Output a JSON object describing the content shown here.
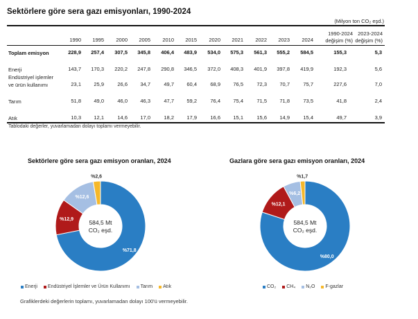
{
  "table": {
    "title": "Sektörlere göre sera gazı emisyonları, 1990-2024",
    "unit_note": "(Milyon ton CO₂ eşd.)",
    "columns": [
      "1990",
      "1995",
      "2000",
      "2005",
      "2010",
      "2015",
      "2020",
      "2021",
      "2022",
      "2023",
      "2024"
    ],
    "change_headers": [
      {
        "line1": "1990-2024",
        "line2": "değişim (%)"
      },
      {
        "line1": "2023-2024",
        "line2": "değişim (%)"
      }
    ],
    "rows": [
      {
        "label": "Toplam emisyon",
        "label2": "",
        "bold": true,
        "values": [
          "228,9",
          "257,4",
          "307,5",
          "345,8",
          "406,4",
          "483,9",
          "534,0",
          "575,3",
          "561,3",
          "555,2",
          "584,5"
        ],
        "change": [
          "155,3",
          "5,3"
        ]
      },
      {
        "label": "Enerji",
        "label2": "",
        "bold": false,
        "values": [
          "143,7",
          "170,3",
          "220,2",
          "247,8",
          "290,8",
          "346,5",
          "372,0",
          "408,3",
          "401,9",
          "397,8",
          "419,9"
        ],
        "change": [
          "192,3",
          "5,6"
        ]
      },
      {
        "label": "Endüstriyel işlemler",
        "label2": "ve ürün kullanımı",
        "bold": false,
        "values": [
          "23,1",
          "25,9",
          "26,6",
          "34,7",
          "49,7",
          "60,4",
          "68,9",
          "76,5",
          "72,3",
          "70,7",
          "75,7"
        ],
        "change": [
          "227,6",
          "7,0"
        ]
      },
      {
        "label": "Tarım",
        "label2": "",
        "bold": false,
        "values": [
          "51,8",
          "49,0",
          "46,0",
          "46,3",
          "47,7",
          "59,2",
          "76,4",
          "75,4",
          "71,5",
          "71,8",
          "73,5"
        ],
        "change": [
          "41,8",
          "2,4"
        ]
      },
      {
        "label": "Atık",
        "label2": "",
        "bold": false,
        "values": [
          "10,3",
          "12,1",
          "14,6",
          "17,0",
          "18,2",
          "17,9",
          "16,6",
          "15,1",
          "15,6",
          "14,9",
          "15,4"
        ],
        "change": [
          "49,7",
          "3,9"
        ]
      }
    ],
    "footnote": "Tablodaki değerler, yuvarlamadan dolayı toplamı vermeyebilir."
  },
  "chart_data": [
    {
      "type": "pie",
      "variant": "donut",
      "title": "Sektörlere göre sera gazı emisyon oranları, 2024",
      "center_label_line1": "584,5 Mt",
      "center_label_line2": "CO₂ eşd.",
      "categories": [
        "Enerji",
        "Endüstriyel İşlemler ve Ürün Kullanımı",
        "Tarım",
        "Atık"
      ],
      "values": [
        71.8,
        12.9,
        12.6,
        2.6
      ],
      "data_labels": [
        "%71,8",
        "%12,9",
        "%12,6",
        "%2,6"
      ],
      "colors": [
        "#2a7ec4",
        "#b01a1a",
        "#a5bfe3",
        "#f6b82a"
      ],
      "label_colors": [
        "#ffffff",
        "#ffffff",
        "#ffffff",
        "#333333"
      ],
      "legend_position": "bottom"
    },
    {
      "type": "pie",
      "variant": "donut",
      "title": "Gazlara göre sera gazı emisyon oranları, 2024",
      "center_label_line1": "584,5 Mt",
      "center_label_line2": "CO₂ eşd.",
      "categories": [
        "CO₂",
        "CH₄",
        "N₂O",
        "F-gazlar"
      ],
      "values": [
        80.0,
        12.1,
        6.2,
        1.7
      ],
      "data_labels": [
        "%80,0",
        "%12,1",
        "%6,2",
        "%1,7"
      ],
      "colors": [
        "#2a7ec4",
        "#b01a1a",
        "#a5bfe3",
        "#f6b82a"
      ],
      "label_colors": [
        "#ffffff",
        "#ffffff",
        "#ffffff",
        "#333333"
      ],
      "legend_position": "bottom"
    }
  ],
  "charts_footnote": "Grafiklerdeki değerlerin toplamı, yuvarlamadan dolayı 100'ü vermeyebilir."
}
